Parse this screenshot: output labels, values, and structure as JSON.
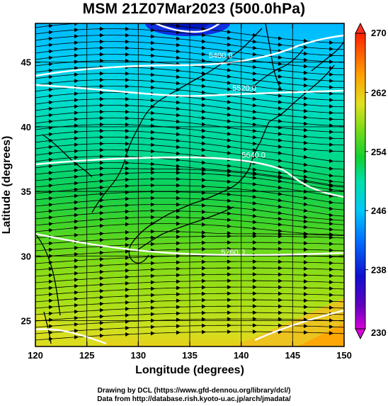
{
  "title": "MSM 21Z07Mar2023 (500.0hPa)",
  "map": {
    "x_label": "Longitude (degrees)",
    "y_label": "Latitude  (degrees)",
    "lon_range": [
      120,
      150
    ],
    "lat_range": [
      23,
      48
    ],
    "lon_ticks": [
      "120",
      "125",
      "130",
      "135",
      "140",
      "145",
      "150"
    ],
    "lat_ticks": [
      "25",
      "30",
      "35",
      "40",
      "45"
    ],
    "field": "temperature",
    "vectors": "wind streamlines, westerly",
    "contours": [
      {
        "label": "5400.0",
        "lon": 138,
        "lat": 45.3
      },
      {
        "label": "5520.0",
        "lon": 140.3,
        "lat": 42.8
      },
      {
        "label": "5640.0",
        "lon": 141.2,
        "lat": 37.6
      },
      {
        "label": "5760.0",
        "lon": 139.2,
        "lat": 30.1
      }
    ]
  },
  "colorbar": {
    "ticks": [
      "270",
      "262",
      "254",
      "246",
      "238",
      "230"
    ],
    "min": 230,
    "max": 270,
    "colors": [
      "#e000e0",
      "#2000c8",
      "#0070ff",
      "#00d0f0",
      "#00e0a0",
      "#10d020",
      "#c0e020",
      "#ffb000",
      "#ff5a00",
      "#ff2000"
    ]
  },
  "credits": {
    "line1": "Drawing by DCL (https://www.gfd-dennou.org/library/dcl/)",
    "line2": "Data from http://database.rish.kyoto-u.ac.jp/arch/jmadata/"
  }
}
